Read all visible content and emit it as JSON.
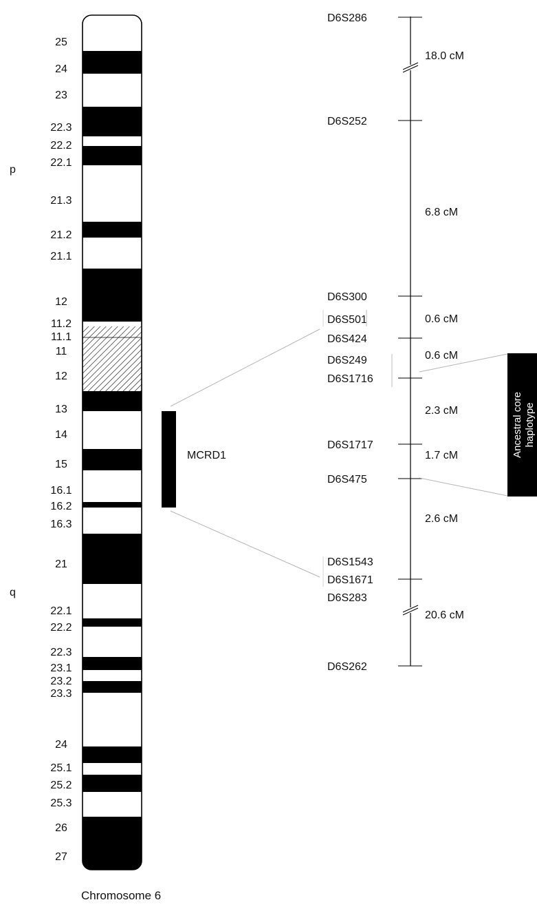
{
  "caption": "Chromosome 6",
  "arms": {
    "p": "p",
    "q": "q"
  },
  "bands": [
    {
      "label": "25",
      "stain": "white"
    },
    {
      "label": "24",
      "stain": "black"
    },
    {
      "label": "23",
      "stain": "white"
    },
    {
      "label": "22.3",
      "stain": "black"
    },
    {
      "label": "22.2",
      "stain": "white"
    },
    {
      "label": "22.1",
      "stain": "black"
    },
    {
      "label": "21.3",
      "stain": "white"
    },
    {
      "label": "21.2",
      "stain": "black"
    },
    {
      "label": "21.1",
      "stain": "white"
    },
    {
      "label": "12",
      "stain": "black"
    },
    {
      "label": "11.2",
      "stain": "white"
    },
    {
      "label": "11.1",
      "stain": "hatched"
    },
    {
      "label": "11",
      "stain": "hatched"
    },
    {
      "label": "12",
      "stain": "black"
    },
    {
      "label": "13",
      "stain": "white"
    },
    {
      "label": "14",
      "stain": "black"
    },
    {
      "label": "15",
      "stain": "white"
    },
    {
      "label": "16.1",
      "stain": "black"
    },
    {
      "label": "16.2",
      "stain": "white"
    },
    {
      "label": "16.3",
      "stain": "black"
    },
    {
      "label": "21",
      "stain": "white"
    },
    {
      "label": "22.1",
      "stain": "black"
    },
    {
      "label": "22.2",
      "stain": "white"
    },
    {
      "label": "22.3",
      "stain": "black"
    },
    {
      "label": "23.1",
      "stain": "white"
    },
    {
      "label": "23.2",
      "stain": "black"
    },
    {
      "label": "23.3",
      "stain": "white"
    },
    {
      "label": "24",
      "stain": "black"
    },
    {
      "label": "25.1",
      "stain": "white"
    },
    {
      "label": "25.2",
      "stain": "black"
    },
    {
      "label": "25.3",
      "stain": "white"
    },
    {
      "label": "26",
      "stain": "black"
    },
    {
      "label": "27",
      "stain": "white"
    }
  ],
  "region": {
    "label": "MCRD1"
  },
  "markers": [
    {
      "name": "D6S286"
    },
    {
      "name": "D6S252"
    },
    {
      "name": "D6S300"
    },
    {
      "name": "D6S501"
    },
    {
      "name": "D6S424"
    },
    {
      "name": "D6S249"
    },
    {
      "name": "D6S1716"
    },
    {
      "name": "D6S1717"
    },
    {
      "name": "D6S475"
    },
    {
      "name": "D6S1543"
    },
    {
      "name": "D6S1671"
    },
    {
      "name": "D6S283"
    },
    {
      "name": "D6S262"
    }
  ],
  "distances": [
    {
      "label": "18.0 cM",
      "break": true
    },
    {
      "label": "6.8 cM",
      "break": false
    },
    {
      "label": "0.6 cM",
      "break": false
    },
    {
      "label": "0.6 cM",
      "break": false
    },
    {
      "label": "2.3 cM",
      "break": false
    },
    {
      "label": "1.7 cM",
      "break": false
    },
    {
      "label": "2.6 cM",
      "break": false
    },
    {
      "label": "20.6 cM",
      "break": true
    }
  ],
  "haplotype": {
    "line1": "Ancestral core",
    "line2": "haplotype"
  },
  "colors": {
    "ink": "#111111",
    "band_black": "#000000",
    "band_white": "#ffffff",
    "connector": "#b5b5b5"
  }
}
